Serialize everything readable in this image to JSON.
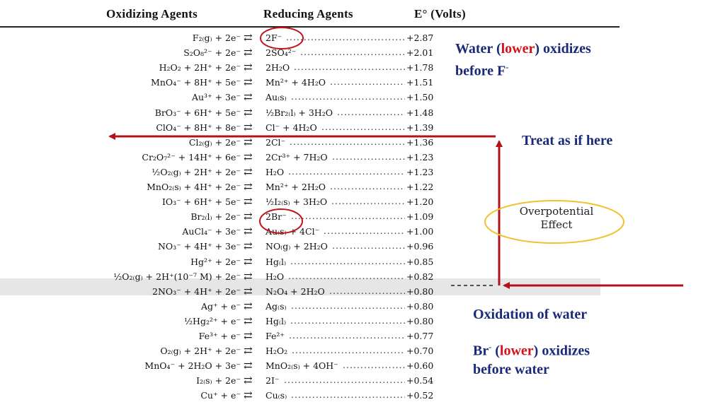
{
  "header": {
    "oxidizing": "Oxidizing Agents",
    "reducing": "Reducing Agents",
    "eo": "E° (Volts)"
  },
  "rows": [
    {
      "ox": "F₂₍g₎ + 2e⁻",
      "red": "2F⁻",
      "e": "+2.87"
    },
    {
      "ox": "S₂O₈²⁻ + 2e⁻",
      "red": "2SO₄²⁻",
      "e": "+2.01"
    },
    {
      "ox": "H₂O₂ + 2H⁺ + 2e⁻",
      "red": "2H₂O",
      "e": "+1.78"
    },
    {
      "ox": "MnO₄⁻ + 8H⁺ + 5e⁻",
      "red": "Mn²⁺ + 4H₂O",
      "e": "+1.51"
    },
    {
      "ox": "Au³⁺ + 3e⁻",
      "red": "Au₍s₎",
      "e": "+1.50"
    },
    {
      "ox": "BrO₃⁻ + 6H⁺ + 5e⁻",
      "red": "½Br₂₍l₎ + 3H₂O",
      "e": "+1.48"
    },
    {
      "ox": "ClO₄⁻ + 8H⁺ + 8e⁻",
      "red": "Cl⁻ + 4H₂O",
      "e": "+1.39"
    },
    {
      "ox": "Cl₂₍g₎ + 2e⁻",
      "red": "2Cl⁻",
      "e": "+1.36"
    },
    {
      "ox": "Cr₂O₇²⁻ + 14H⁺ + 6e⁻",
      "red": "2Cr³⁺ + 7H₂O",
      "e": "+1.23"
    },
    {
      "ox": "½O₂₍g₎ + 2H⁺ + 2e⁻",
      "red": "H₂O",
      "e": "+1.23"
    },
    {
      "ox": "MnO₂₍s₎ + 4H⁺ + 2e⁻",
      "red": "Mn²⁺ + 2H₂O",
      "e": "+1.22"
    },
    {
      "ox": "IO₃⁻ + 6H⁺ + 5e⁻",
      "red": "½I₂₍s₎ + 3H₂O",
      "e": "+1.20"
    },
    {
      "ox": "Br₂₍l₎ + 2e⁻",
      "red": "2Br⁻",
      "e": "+1.09"
    },
    {
      "ox": "AuCl₄⁻ + 3e⁻",
      "red": "Au₍s₎ + 4Cl⁻",
      "e": "+1.00"
    },
    {
      "ox": "NO₃⁻ + 4H⁺ + 3e⁻",
      "red": "NO₍g₎ + 2H₂O",
      "e": "+0.96"
    },
    {
      "ox": "Hg²⁺ + 2e⁻",
      "red": "Hg₍l₎",
      "e": "+0.85"
    },
    {
      "ox": "½O₂₍g₎ + 2H⁺(10⁻⁷ M) + 2e⁻",
      "red": "H₂O",
      "e": "+0.82"
    },
    {
      "ox": "2NO₃⁻ + 4H⁺ + 2e⁻",
      "red": "N₂O₄ + 2H₂O",
      "e": "+0.80"
    },
    {
      "ox": "Ag⁺ + e⁻",
      "red": "Ag₍s₎",
      "e": "+0.80"
    },
    {
      "ox": "½Hg₂²⁺ + e⁻",
      "red": "Hg₍l₎",
      "e": "+0.80"
    },
    {
      "ox": "Fe³⁺ + e⁻",
      "red": "Fe²⁺",
      "e": "+0.77"
    },
    {
      "ox": "O₂₍g₎ + 2H⁺ + 2e⁻",
      "red": "H₂O₂",
      "e": "+0.70"
    },
    {
      "ox": "MnO₄⁻ + 2H₂O + 3e⁻",
      "red": "MnO₂₍s₎ + 4OH⁻",
      "e": "+0.60"
    },
    {
      "ox": "I₂₍s₎ + 2e⁻",
      "red": "2I⁻",
      "e": "+0.54"
    },
    {
      "ox": "Cu⁺ + e⁻",
      "red": "Cu₍s₎",
      "e": "+0.52"
    }
  ],
  "arrow_symbol": "⇄",
  "notes": {
    "water_lower_1a": "Water (",
    "water_lower_1b": "lower",
    "water_lower_1c": ") oxidizes",
    "water_lower_2": "before F",
    "water_lower_2sup": "-",
    "treat": "Treat as if here",
    "ovp_1": "Overpotential",
    "ovp_2": "Effect",
    "oxidation": "Oxidation of water",
    "br_1a": "Br",
    "br_1sup": "-",
    "br_1b": " (",
    "br_1c": "lower",
    "br_1d": ") oxidizes",
    "br_2": "before water"
  },
  "colors": {
    "arrow_red": "#b3121b",
    "circle_red": "#c0141c",
    "ellipse_gold": "#f2c12e",
    "note_blue": "#1a2a7a",
    "highlight_red": "#d4121a",
    "row_highlight": "#e6e6e6"
  }
}
